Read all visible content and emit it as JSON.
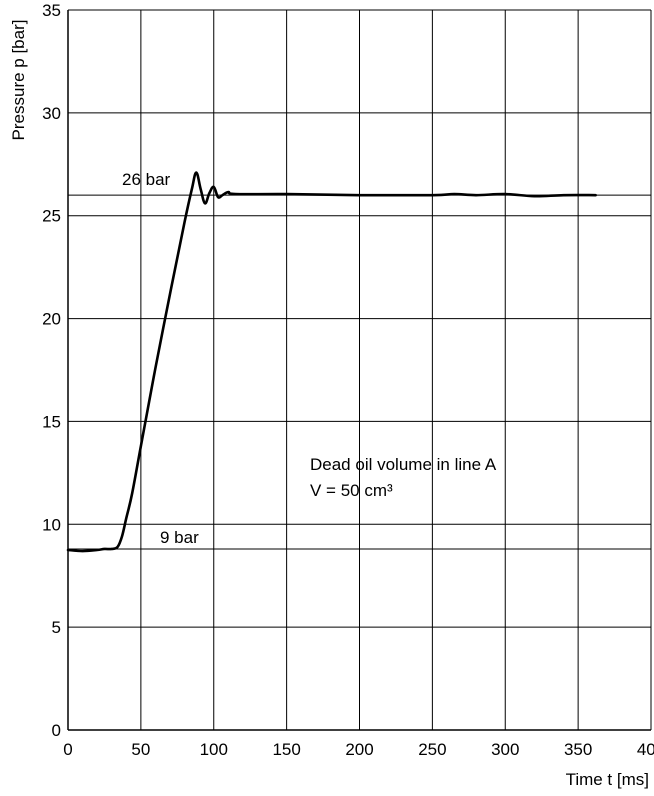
{
  "chart_data": {
    "type": "line",
    "title": "",
    "xlabel": "Time t [ms]",
    "ylabel": "Pressure p [bar]",
    "xlim": [
      0,
      400
    ],
    "ylim": [
      0,
      35
    ],
    "grid": true,
    "xticks": [
      "0",
      "50",
      "100",
      "150",
      "200",
      "250",
      "300",
      "350",
      "400"
    ],
    "yticks": [
      "0",
      "5",
      "10",
      "15",
      "20",
      "25",
      "30",
      "35"
    ],
    "reference_lines": [
      {
        "label": "26 bar",
        "y": 26
      },
      {
        "label": "9 bar",
        "y": 8.8
      }
    ],
    "annotations": [
      "Dead oil volume in line A",
      "V = 50 cm³"
    ],
    "series": [
      {
        "x": [
          0,
          10,
          20,
          25,
          30,
          34,
          37,
          40,
          44,
          50,
          60,
          70,
          80,
          85,
          88,
          91,
          94,
          97,
          100,
          103,
          106,
          110,
          115,
          150,
          200,
          250,
          265,
          280,
          300,
          320,
          340,
          362
        ],
        "y": [
          8.75,
          8.7,
          8.75,
          8.8,
          8.8,
          8.9,
          9.4,
          10.3,
          11.5,
          13.8,
          17.6,
          21.2,
          24.7,
          26.3,
          27.1,
          26.3,
          25.6,
          26.1,
          26.4,
          25.9,
          26.0,
          26.15,
          26.05,
          26.05,
          26.0,
          26.0,
          26.05,
          26.0,
          26.05,
          25.95,
          26.0,
          26.0
        ]
      }
    ]
  }
}
